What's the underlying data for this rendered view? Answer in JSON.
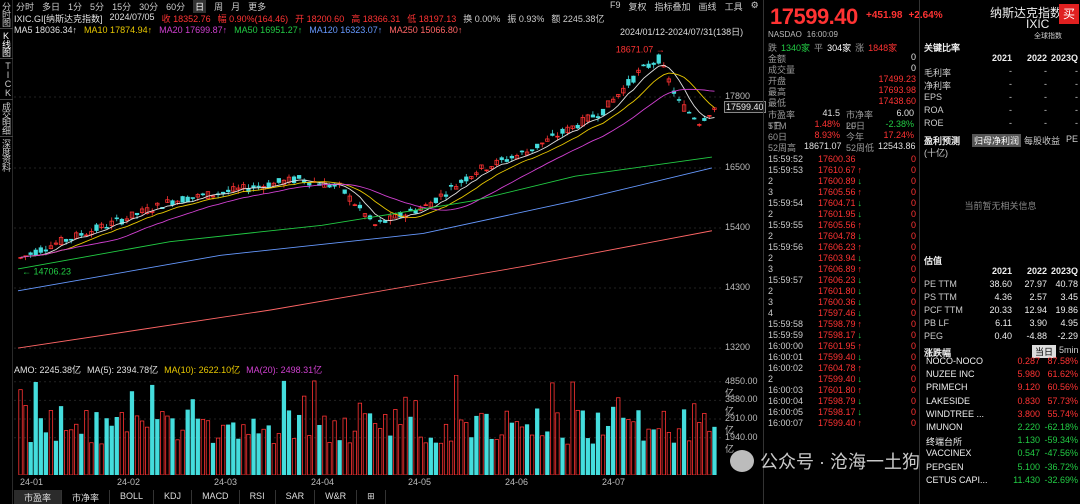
{
  "leftbar": [
    "分时图",
    "K线图",
    "TICK",
    "成交明细",
    "深度资料"
  ],
  "topbar": {
    "periods": [
      "分时",
      "多日",
      "1分",
      "5分",
      "15分",
      "30分",
      "60分",
      "日",
      "周",
      "月",
      "更多"
    ],
    "active": "日",
    "right": [
      "F9",
      "复权",
      "指标叠加",
      "画线",
      "工具"
    ],
    "settings_icon": "gear-icon"
  },
  "info": [
    {
      "text": "IXIC.GI[纳斯达克指数]",
      "color": "#e0e0e0"
    },
    {
      "text": "2024/07/05",
      "color": "#e0e0e0"
    },
    {
      "text": "收 18352.76",
      "color": "#ff3333"
    },
    {
      "text": "幅 0.90%(164.46)",
      "color": "#ff3333"
    },
    {
      "text": "开 18200.60",
      "color": "#ff3333"
    },
    {
      "text": "高 18366.31",
      "color": "#ff3333"
    },
    {
      "text": "低 18197.13",
      "color": "#ff3333"
    },
    {
      "text": "换 0.00%",
      "color": "#cccccc"
    },
    {
      "text": "振 0.93%",
      "color": "#cccccc"
    },
    {
      "text": "额 2245.38亿",
      "color": "#cccccc"
    }
  ],
  "ma": [
    {
      "text": "MA5 18036.34↑",
      "color": "#e0e0e0"
    },
    {
      "text": "MA10 17874.94↑",
      "color": "#e8c800"
    },
    {
      "text": "MA20 17699.87↑",
      "color": "#d040d0"
    },
    {
      "text": "MA50 16951.27↑",
      "color": "#22cc44"
    },
    {
      "text": "MA120 16323.07↑",
      "color": "#6699ff"
    },
    {
      "text": "MA250 15066.80↑",
      "color": "#ff6666"
    }
  ],
  "daterange": "2024/01/12-2024/07/31(138日)",
  "chart_data": {
    "type": "candlestick",
    "yticks": [
      "17800",
      "16500",
      "15400",
      "14300",
      "13200"
    ],
    "ylim": [
      13000,
      18900
    ],
    "high_label": "18671.07",
    "low_label": "14706.23",
    "last_price_label": "17599.40",
    "xlabels": [
      "24-01",
      "24-02",
      "24-03",
      "24-04",
      "24-05",
      "24-06",
      "24-07"
    ],
    "volume": {
      "label": "AMO: 2245.38亿",
      "ma5": "MA(5): 2394.78亿",
      "ma10": "MA(10): 2622.10亿",
      "ma20": "MA(20): 2498.31亿",
      "yticks": [
        "4850.00亿",
        "3880.00亿",
        "2910.00亿",
        "1940.00亿"
      ]
    }
  },
  "bottabs": [
    "市盈率",
    "市净率",
    "BOLL",
    "KDJ",
    "MACD",
    "RSI",
    "SAR",
    "W&R",
    "⊞"
  ],
  "quote": {
    "price": "17599.40",
    "change": "+451.98",
    "pct": "+2.64%",
    "exch": "NASDAO",
    "time": "16:00:09",
    "breadth": [
      {
        "label": "跌",
        "value": "1340家",
        "color": "#22cc44"
      },
      {
        "label": "平",
        "value": "304家",
        "color": "#ffffff"
      },
      {
        "label": "涨",
        "value": "1848家",
        "color": "#ff3333"
      }
    ],
    "rows": [
      {
        "l": "金额",
        "v": "0",
        "c": "#e0e0e0"
      },
      {
        "l": "成交量",
        "v": "0",
        "c": "#e0e0e0"
      },
      {
        "l": "开盘",
        "v": "17499.23",
        "c": "#ff3333"
      },
      {
        "l": "最高",
        "v": "17693.98",
        "c": "#ff3333"
      },
      {
        "l": "最低",
        "v": "17438.60",
        "c": "#ff3333"
      }
    ],
    "ratios": [
      {
        "a": "市盈率TTM",
        "b": "41.5",
        "c": "市净率LF",
        "d": "6.00",
        "bc": "#e0e0e0",
        "dc": "#e0e0e0"
      },
      {
        "a": "5日",
        "b": "1.48%",
        "c": "20日",
        "d": "-2.38%",
        "bc": "#ff3333",
        "dc": "#22cc44"
      },
      {
        "a": "60日",
        "b": "8.93%",
        "c": "今年",
        "d": "17.24%",
        "bc": "#ff3333",
        "dc": "#ff3333"
      },
      {
        "a": "52周高",
        "b": "18671.07",
        "c": "52周低",
        "d": "12543.86",
        "bc": "#e0e0e0",
        "dc": "#e0e0e0"
      }
    ],
    "ticks": [
      [
        "15:59:52",
        "17600.36",
        ""
      ],
      [
        "15:59:53",
        "17610.67",
        "↑"
      ],
      [
        "2",
        "17600.89",
        "↓"
      ],
      [
        "3",
        "17605.56",
        "↑"
      ],
      [
        "15:59:54",
        "17604.71",
        "↓"
      ],
      [
        "2",
        "17601.95",
        "↓"
      ],
      [
        "15:59:55",
        "17605.56",
        "↑"
      ],
      [
        "2",
        "17604.78",
        "↓"
      ],
      [
        "15:59:56",
        "17606.23",
        "↑"
      ],
      [
        "2",
        "17603.94",
        "↓"
      ],
      [
        "3",
        "17606.89",
        "↑"
      ],
      [
        "15:59:57",
        "17606.23",
        "↓"
      ],
      [
        "2",
        "17601.80",
        "↓"
      ],
      [
        "3",
        "17600.36",
        "↓"
      ],
      [
        "4",
        "17597.46",
        "↓"
      ],
      [
        "15:59:58",
        "17598.79",
        "↑"
      ],
      [
        "15:59:59",
        "17598.17",
        "↓"
      ],
      [
        "16:00:00",
        "17601.95",
        "↑"
      ],
      [
        "16:00:01",
        "17599.40",
        "↓"
      ],
      [
        "16:00:02",
        "17604.78",
        "↑"
      ],
      [
        "2",
        "17599.40",
        "↓"
      ],
      [
        "16:00:03",
        "17601.80",
        "↑"
      ],
      [
        "16:00:04",
        "17598.79",
        "↓"
      ],
      [
        "16:00:05",
        "17598.17",
        "↓"
      ],
      [
        "16:00:07",
        "17599.40",
        "↑"
      ]
    ],
    "tick_vol": "0"
  },
  "fund": {
    "name": "纳斯达克指数",
    "code": "IXIC",
    "global": "全球指数",
    "buy": "买",
    "key_ratios_title": "关键比率",
    "years": [
      "2021",
      "2022",
      "2023Q"
    ],
    "key_rows": [
      {
        "l": "毛利率",
        "v": [
          "-",
          "-",
          "-"
        ]
      },
      {
        "l": "净利率",
        "v": [
          "-",
          "-",
          "-"
        ]
      },
      {
        "l": "EPS",
        "v": [
          "-",
          "-",
          "-"
        ]
      },
      {
        "l": "ROA",
        "v": [
          "-",
          "-",
          "-"
        ]
      },
      {
        "l": "ROE",
        "v": [
          "-",
          "-",
          "-"
        ]
      }
    ],
    "forecast_title": "盈利预测",
    "forecast_tabs": [
      "归母净利润",
      "每股收益",
      "PE"
    ],
    "forecast_unit": "(十亿)",
    "no_data": "当前暂无相关信息",
    "valuation_title": "估值",
    "val_rows": [
      {
        "l": "PE TTM",
        "v": [
          "38.60",
          "27.97",
          "40.78"
        ]
      },
      {
        "l": "PS TTM",
        "v": [
          "4.36",
          "2.57",
          "3.45"
        ]
      },
      {
        "l": "PCF TTM",
        "v": [
          "20.33",
          "12.94",
          "19.86"
        ]
      },
      {
        "l": "PB LF",
        "v": [
          "6.11",
          "3.90",
          "4.95"
        ]
      },
      {
        "l": "PEG",
        "v": [
          "0.40",
          "-4.88",
          "-2.29"
        ]
      }
    ],
    "gainers_title": "涨跌幅",
    "gainers_tabs": [
      "当日",
      "5min"
    ],
    "gainers": [
      {
        "n": "NOCO-NOCO",
        "p": "0.287",
        "c": "87.58%",
        "pc": "#ff3333",
        "cc": "#ff3333"
      },
      {
        "n": "NUZEE INC",
        "p": "5.980",
        "c": "61.62%",
        "pc": "#ff3333",
        "cc": "#ff3333"
      },
      {
        "n": "PRIMECH",
        "p": "9.120",
        "c": "60.56%",
        "pc": "#ff3333",
        "cc": "#ff3333"
      },
      {
        "n": "LAKESIDE",
        "p": "0.830",
        "c": "57.73%",
        "pc": "#ff3333",
        "cc": "#ff3333"
      },
      {
        "n": "WINDTREE ...",
        "p": "3.800",
        "c": "55.74%",
        "pc": "#ff3333",
        "cc": "#ff3333"
      },
      {
        "n": "IMUNON",
        "p": "2.220",
        "c": "-62.18%",
        "pc": "#22cc44",
        "cc": "#22cc44"
      },
      {
        "n": "终端台所",
        "p": "1.130",
        "c": "-59.34%",
        "pc": "#22cc44",
        "cc": "#22cc44"
      },
      {
        "n": "VACCINEX",
        "p": "0.547",
        "c": "-47.56%",
        "pc": "#22cc44",
        "cc": "#22cc44"
      },
      {
        "n": "PEPGEN",
        "p": "5.100",
        "c": "-36.72%",
        "pc": "#22cc44",
        "cc": "#22cc44"
      },
      {
        "n": "CETUS CAPI...",
        "p": "11.430",
        "c": "-32.69%",
        "pc": "#22cc44",
        "cc": "#22cc44"
      }
    ]
  },
  "watermark": "公众号 · 沧海一土狗"
}
